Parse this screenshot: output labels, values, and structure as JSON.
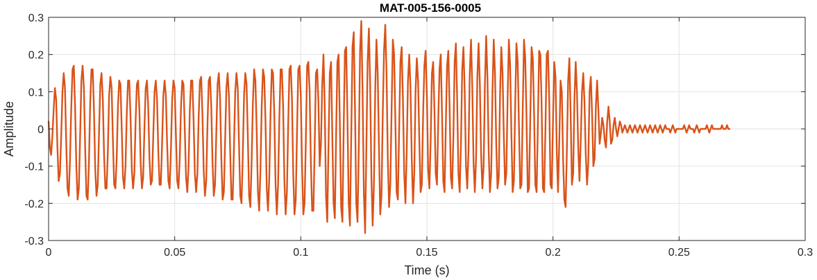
{
  "chart_data": {
    "type": "line",
    "title": "MAT-005-156-0005",
    "xlabel": "Time (s)",
    "ylabel": "Amplitude",
    "xlim": [
      0,
      0.3
    ],
    "ylim": [
      -0.3,
      0.3
    ],
    "x_ticks": [
      0,
      0.05,
      0.1,
      0.15,
      0.2,
      0.25,
      0.3
    ],
    "x_tick_labels": [
      "0",
      "0.05",
      "0.1",
      "0.15",
      "0.2",
      "0.25",
      "0.3"
    ],
    "y_ticks": [
      -0.3,
      -0.2,
      -0.1,
      0,
      0.1,
      0.2,
      0.3
    ],
    "y_tick_labels": [
      "-0.3",
      "-0.2",
      "-0.1",
      "0",
      "0.1",
      "0.2",
      "0.3"
    ],
    "grid": true,
    "series": [
      {
        "color": "#D95319",
        "sample_interval": 0.0005,
        "values": [
          0.02,
          -0.05,
          -0.07,
          -0.02,
          0.05,
          0.11,
          0.08,
          -0.05,
          -0.14,
          -0.12,
          -0.02,
          0.1,
          0.15,
          0.11,
          -0.04,
          -0.16,
          -0.18,
          -0.08,
          0.06,
          0.16,
          0.17,
          0.06,
          -0.1,
          -0.19,
          -0.16,
          -0.02,
          0.13,
          0.17,
          0.11,
          -0.05,
          -0.18,
          -0.19,
          -0.09,
          0.07,
          0.16,
          0.16,
          0.05,
          -0.11,
          -0.18,
          -0.15,
          -0.01,
          0.12,
          0.15,
          0.08,
          -0.07,
          -0.16,
          -0.16,
          -0.06,
          0.09,
          0.14,
          0.11,
          -0.03,
          -0.15,
          -0.16,
          -0.08,
          0.06,
          0.13,
          0.12,
          0.0,
          -0.13,
          -0.16,
          -0.1,
          0.04,
          0.13,
          0.13,
          0.03,
          -0.11,
          -0.16,
          -0.12,
          0.02,
          0.12,
          0.13,
          0.05,
          -0.09,
          -0.16,
          -0.13,
          0.0,
          0.11,
          0.13,
          0.06,
          -0.08,
          -0.15,
          -0.14,
          -0.02,
          0.1,
          0.13,
          0.08,
          -0.06,
          -0.15,
          -0.15,
          -0.04,
          0.09,
          0.13,
          0.09,
          -0.04,
          -0.14,
          -0.16,
          -0.06,
          0.08,
          0.13,
          0.11,
          -0.02,
          -0.14,
          -0.16,
          -0.08,
          0.06,
          0.13,
          0.12,
          0.0,
          -0.13,
          -0.17,
          -0.1,
          0.05,
          0.13,
          0.13,
          0.02,
          -0.12,
          -0.17,
          -0.12,
          0.03,
          0.13,
          0.14,
          0.04,
          -0.11,
          -0.18,
          -0.14,
          0.01,
          0.13,
          0.14,
          0.06,
          -0.09,
          -0.18,
          -0.15,
          -0.01,
          0.12,
          0.15,
          0.08,
          -0.08,
          -0.19,
          -0.17,
          -0.03,
          0.11,
          0.15,
          0.09,
          -0.06,
          -0.19,
          -0.19,
          -0.05,
          0.1,
          0.15,
          0.11,
          -0.04,
          -0.18,
          -0.2,
          -0.07,
          0.09,
          0.15,
          0.12,
          -0.02,
          -0.18,
          -0.21,
          -0.09,
          0.07,
          0.16,
          0.13,
          0.0,
          -0.17,
          -0.22,
          -0.11,
          0.06,
          0.16,
          0.14,
          0.02,
          -0.16,
          -0.22,
          -0.13,
          0.04,
          0.16,
          0.15,
          0.04,
          -0.15,
          -0.23,
          -0.15,
          0.03,
          0.16,
          0.16,
          0.06,
          -0.14,
          -0.23,
          -0.17,
          0.01,
          0.16,
          0.17,
          0.08,
          -0.12,
          -0.23,
          -0.19,
          -0.01,
          0.16,
          0.17,
          0.09,
          -0.1,
          -0.23,
          -0.2,
          -0.03,
          0.17,
          0.18,
          0.1,
          -0.09,
          -0.22,
          -0.22,
          -0.05,
          0.15,
          0.16,
          0.07,
          -0.1,
          -0.04,
          0.12,
          0.2,
          0.06,
          -0.18,
          -0.25,
          -0.04,
          0.15,
          0.18,
          -0.02,
          -0.2,
          -0.24,
          -0.02,
          0.18,
          0.2,
          0.01,
          -0.21,
          -0.25,
          0.0,
          0.21,
          0.22,
          0.03,
          -0.2,
          -0.26,
          -0.02,
          0.22,
          0.26,
          0.05,
          -0.2,
          -0.25,
          -0.05,
          0.21,
          0.29,
          0.1,
          -0.17,
          -0.28,
          -0.05,
          0.18,
          0.27,
          0.12,
          -0.13,
          -0.26,
          -0.15,
          0.1,
          0.24,
          0.15,
          -0.05,
          -0.23,
          -0.18,
          0.04,
          0.21,
          0.28,
          0.15,
          -0.08,
          -0.21,
          -0.15,
          0.05,
          0.24,
          0.2,
          0.02,
          -0.17,
          -0.19,
          0.0,
          0.18,
          0.22,
          0.08,
          -0.12,
          -0.2,
          -0.06,
          0.13,
          0.2,
          0.11,
          -0.08,
          -0.2,
          -0.12,
          0.1,
          0.19,
          0.13,
          -0.03,
          -0.17,
          -0.15,
          0.04,
          0.17,
          0.21,
          0.09,
          -0.11,
          -0.16,
          -0.03,
          0.15,
          0.18,
          0.05,
          -0.12,
          -0.15,
          0.02,
          0.16,
          0.2,
          0.04,
          -0.14,
          -0.17,
          0.01,
          0.17,
          0.21,
          0.06,
          -0.13,
          -0.16,
          -0.02,
          0.18,
          0.23,
          0.08,
          -0.12,
          -0.17,
          -0.04,
          0.16,
          0.22,
          0.1,
          -0.1,
          -0.16,
          -0.06,
          0.15,
          0.24,
          0.11,
          -0.09,
          -0.17,
          -0.08,
          0.14,
          0.23,
          0.12,
          -0.07,
          -0.16,
          -0.1,
          0.12,
          0.25,
          0.14,
          -0.06,
          -0.17,
          -0.12,
          0.1,
          0.24,
          0.15,
          -0.04,
          -0.16,
          -0.13,
          0.09,
          0.22,
          0.15,
          -0.02,
          -0.15,
          -0.12,
          0.08,
          0.24,
          0.17,
          -0.01,
          -0.17,
          -0.14,
          0.06,
          0.23,
          0.18,
          0.01,
          -0.16,
          -0.15,
          0.05,
          0.24,
          0.19,
          0.03,
          -0.17,
          -0.16,
          0.03,
          0.22,
          0.19,
          0.04,
          -0.15,
          -0.17,
          0.01,
          0.21,
          0.2,
          0.06,
          -0.16,
          -0.17,
          0.0,
          0.2,
          0.21,
          0.08,
          -0.15,
          -0.16,
          0.02,
          0.18,
          0.14,
          -0.06,
          -0.17,
          -0.03,
          0.13,
          0.1,
          -0.08,
          -0.19,
          -0.21,
          -0.06,
          0.13,
          0.19,
          0.04,
          -0.15,
          -0.12,
          0.08,
          0.18,
          0.1,
          -0.05,
          -0.14,
          -0.03,
          0.1,
          0.15,
          0.07,
          -0.07,
          -0.15,
          -0.09,
          0.1,
          0.14,
          0.04,
          -0.1,
          -0.08,
          0.06,
          0.13,
          0.05,
          -0.04,
          -0.01,
          0.03,
          0.01,
          -0.03,
          -0.05,
          0.02,
          0.06,
          0.02,
          -0.04,
          -0.03,
          0.01,
          0.03,
          0.0,
          -0.02,
          0.0,
          0.02,
          0.01,
          -0.01,
          0.0,
          0.01,
          0.0,
          -0.01,
          0.0,
          0.01,
          0.0,
          -0.01,
          0.0,
          0.01,
          0.0,
          -0.01,
          0.0,
          0.01,
          0.0,
          -0.01,
          0.0,
          0.01,
          0.0,
          -0.01,
          0.0,
          0.01,
          0.0,
          -0.01,
          0.0,
          0.01,
          0.0,
          -0.01,
          0.0,
          0.01,
          0.0,
          -0.01,
          0.0,
          0.01,
          0.0,
          0.0,
          0.0,
          -0.01,
          0.0,
          0.01,
          0.0,
          -0.01,
          0.0,
          0.0,
          0.0,
          0.0,
          0.0,
          0.0,
          0.01,
          0.0,
          -0.01,
          0.0,
          0.01,
          0.0,
          0.0,
          0.0,
          -0.01,
          0.0,
          0.01,
          0.0,
          -0.01,
          0.0,
          0.0,
          0.0,
          0.0,
          0.0,
          0.01,
          0.0,
          -0.01,
          0.0,
          0.01,
          0.0,
          0.0,
          0.0,
          0.0,
          0.0,
          0.0,
          0.0,
          0.01,
          0.0,
          0.0,
          0.0,
          0.01,
          0.0,
          0.0
        ]
      }
    ]
  }
}
